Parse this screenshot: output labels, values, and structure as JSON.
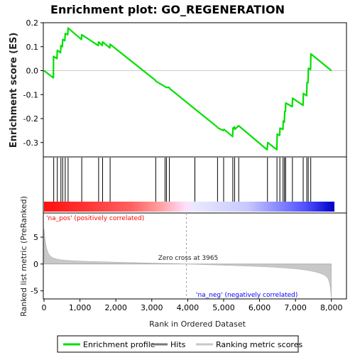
{
  "chart_data": {
    "type": "line",
    "title": "Enrichment plot: GO_REGENERATION",
    "xlabel": "Rank in Ordered Dataset",
    "es_ylabel": "Enrichment score (ES)",
    "metric_ylabel": "Ranked list metric (PreRanked)",
    "xlim": [
      0,
      8400
    ],
    "es_ylim": [
      -0.36,
      0.2
    ],
    "metric_ylim": [
      -6.5,
      9.5
    ],
    "x_ticks": [
      0,
      1000,
      2000,
      3000,
      4000,
      5000,
      6000,
      7000,
      8000
    ],
    "x_tick_labels": [
      "0",
      "1,000",
      "2,000",
      "3,000",
      "4,000",
      "5,000",
      "6,000",
      "7,000",
      "8,000"
    ],
    "es_ticks": [
      0.2,
      0.1,
      0.0,
      -0.1,
      -0.2,
      -0.3
    ],
    "es_tick_labels": [
      "0.2",
      "0.1",
      "0.0",
      "-0.1",
      "-0.2",
      "-0.3"
    ],
    "metric_ticks": [
      5,
      0,
      -5
    ],
    "metric_tick_labels": [
      "5",
      "0",
      "-5"
    ],
    "enrichment_profile": [
      [
        0,
        0.0
      ],
      [
        260,
        -0.03
      ],
      [
        265,
        0.06
      ],
      [
        360,
        0.05
      ],
      [
        370,
        0.085
      ],
      [
        460,
        0.075
      ],
      [
        470,
        0.105
      ],
      [
        510,
        0.1
      ],
      [
        520,
        0.13
      ],
      [
        580,
        0.125
      ],
      [
        590,
        0.155
      ],
      [
        660,
        0.15
      ],
      [
        670,
        0.178
      ],
      [
        1040,
        0.13
      ],
      [
        1050,
        0.15
      ],
      [
        1510,
        0.105
      ],
      [
        1520,
        0.12
      ],
      [
        1620,
        0.105
      ],
      [
        1630,
        0.12
      ],
      [
        1830,
        0.095
      ],
      [
        1840,
        0.11
      ],
      [
        3100,
        -0.04
      ],
      [
        3120,
        -0.045
      ],
      [
        3350,
        -0.065
      ],
      [
        3400,
        -0.07
      ],
      [
        3480,
        -0.07
      ],
      [
        3500,
        -0.075
      ],
      [
        4200,
        -0.16
      ],
      [
        4820,
        -0.235
      ],
      [
        4850,
        -0.24
      ],
      [
        4990,
        -0.25
      ],
      [
        5010,
        -0.245
      ],
      [
        5250,
        -0.275
      ],
      [
        5260,
        -0.24
      ],
      [
        5300,
        -0.235
      ],
      [
        5310,
        -0.245
      ],
      [
        5420,
        -0.23
      ],
      [
        6210,
        -0.33
      ],
      [
        6230,
        -0.3
      ],
      [
        6480,
        -0.33
      ],
      [
        6490,
        -0.265
      ],
      [
        6560,
        -0.27
      ],
      [
        6570,
        -0.24
      ],
      [
        6650,
        -0.245
      ],
      [
        6660,
        -0.21
      ],
      [
        6690,
        -0.215
      ],
      [
        6700,
        -0.17
      ],
      [
        6720,
        -0.17
      ],
      [
        6730,
        -0.135
      ],
      [
        6910,
        -0.15
      ],
      [
        6920,
        -0.115
      ],
      [
        7210,
        -0.145
      ],
      [
        7220,
        -0.095
      ],
      [
        7310,
        -0.105
      ],
      [
        7320,
        -0.05
      ],
      [
        7350,
        -0.05
      ],
      [
        7360,
        0.01
      ],
      [
        7420,
        0.005
      ],
      [
        7430,
        0.07
      ],
      [
        8000,
        0.0
      ]
    ],
    "hits": [
      270,
      370,
      470,
      520,
      590,
      670,
      1050,
      1520,
      1630,
      1840,
      3110,
      3370,
      3410,
      3490,
      4200,
      4830,
      5000,
      5255,
      5305,
      5420,
      6220,
      6485,
      6565,
      6655,
      6695,
      6725,
      6915,
      7215,
      7315,
      7355,
      7425
    ],
    "zero_cross_rank": 3965,
    "zero_cross_label": "Zero cross at 3965",
    "pos_label": "'na_pos' (positively correlated)",
    "neg_label": "'na_neg' (negatively correlated)",
    "legend_placement": "bottom",
    "legend": [
      "Enrichment profile",
      "Hits",
      "Ranking metric scores"
    ],
    "colors": {
      "profile": "#00e000",
      "hits": "#000000",
      "metric_fill": "#c8c8c8",
      "zero_line": "#a0a0a0",
      "pos_text": "#ff0000",
      "neg_text": "#0000ff"
    }
  }
}
